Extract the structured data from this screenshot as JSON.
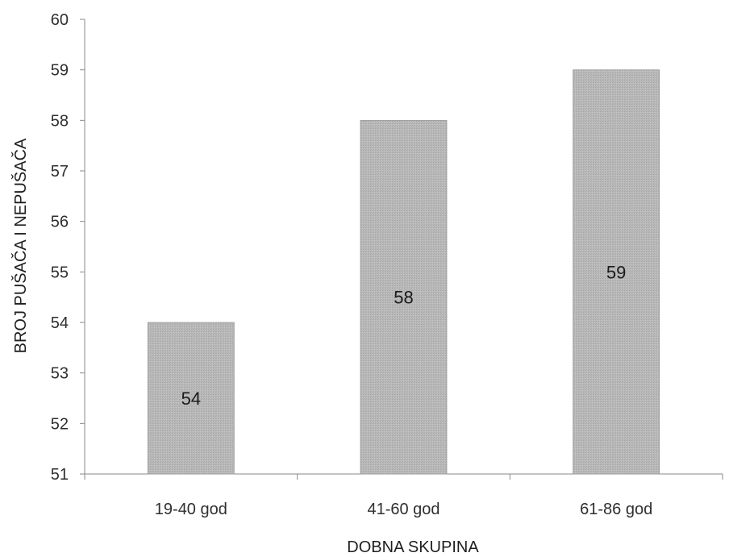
{
  "chart_data": {
    "type": "bar",
    "title": "",
    "xlabel": "DOBNA SKUPINA",
    "ylabel": "BROJ PUŠAČA I NEPUŠAČA",
    "categories": [
      "19-40 god",
      "41-60 god",
      "61-86 god"
    ],
    "values": [
      54,
      58,
      59
    ],
    "data_labels": [
      "54",
      "58",
      "59"
    ],
    "ylim": [
      51,
      60
    ],
    "yticks": [
      51,
      52,
      53,
      54,
      55,
      56,
      57,
      58,
      59,
      60
    ],
    "grid": false,
    "legend": "none",
    "colors": {
      "bar": "#b5b5b5",
      "bar_edge": "#9a9a9a",
      "axis": "#8a8a8a"
    }
  }
}
